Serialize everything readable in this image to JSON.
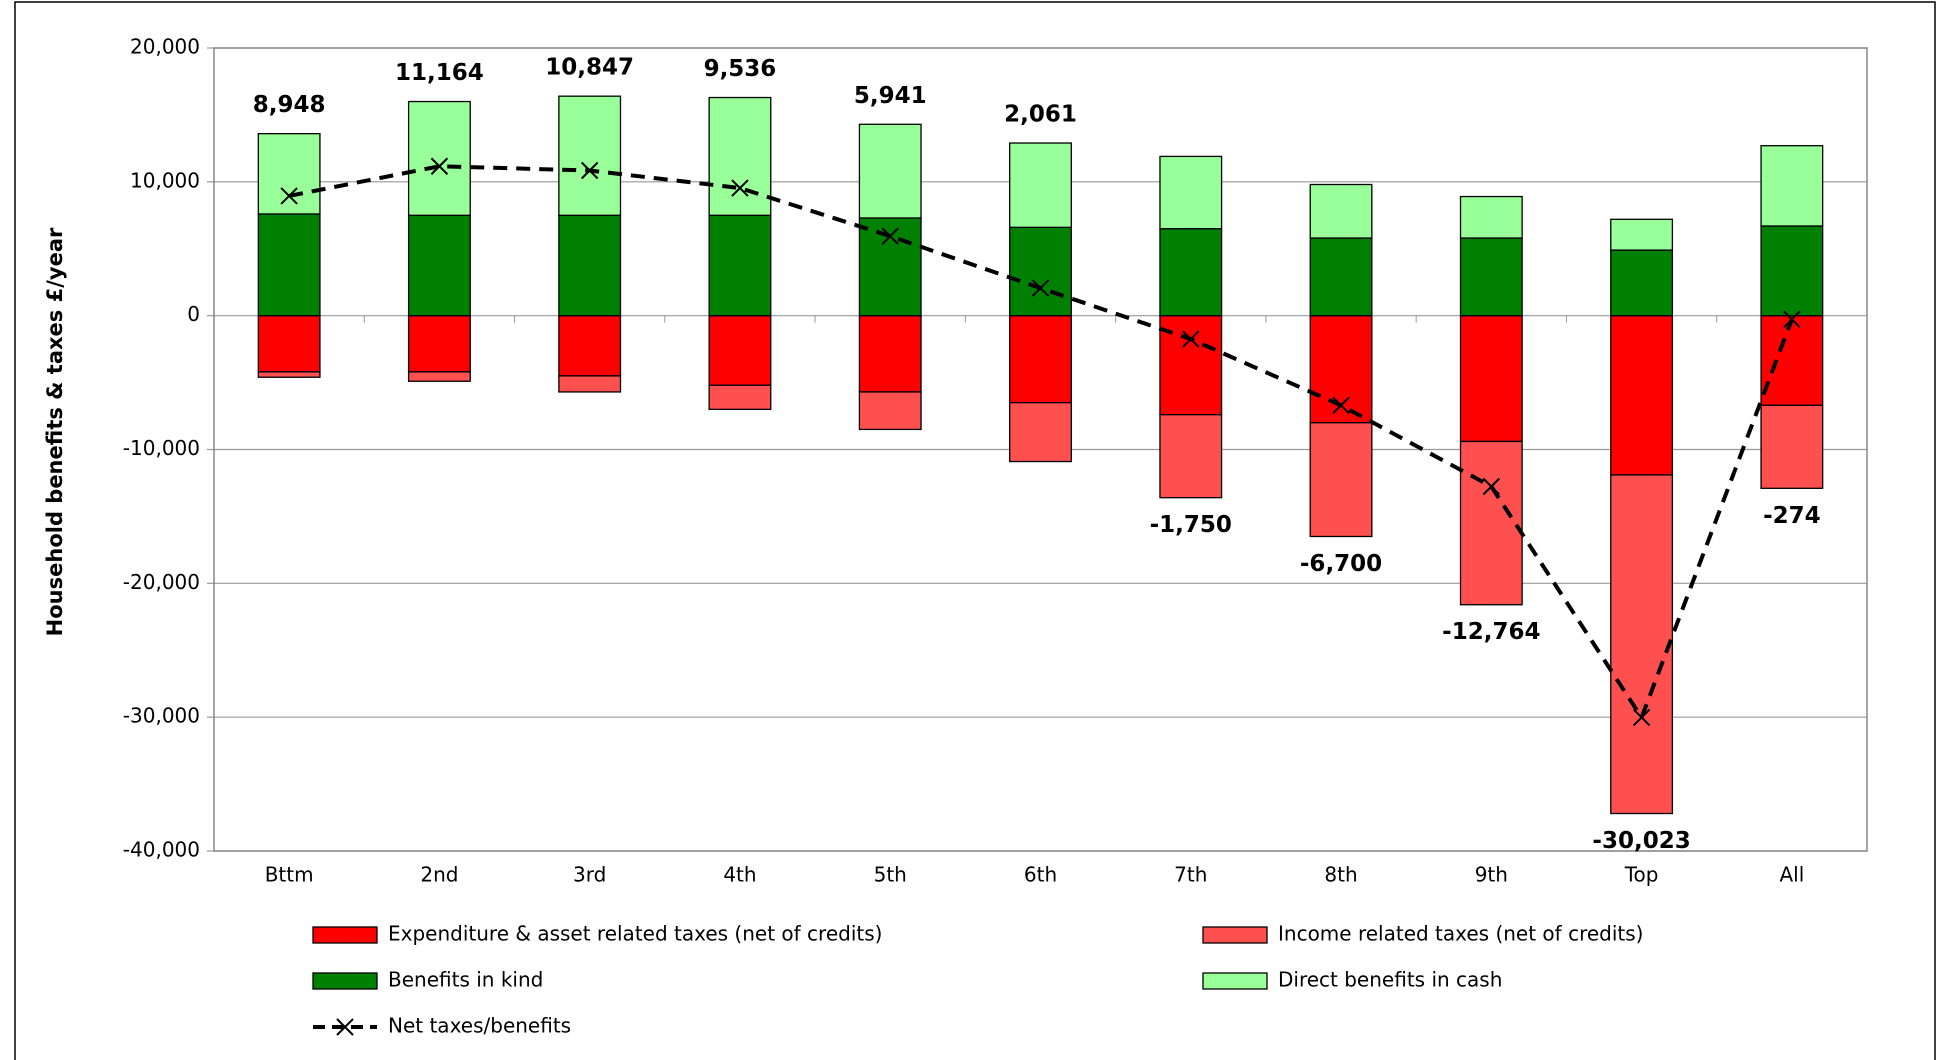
{
  "chart_data": {
    "type": "bar",
    "y_label": "Household benefits & taxes £/year",
    "categories": [
      "Bttm",
      "2nd",
      "3rd",
      "4th",
      "5th",
      "6th",
      "7th",
      "8th",
      "9th",
      "Top",
      "All"
    ],
    "series": [
      {
        "name": "Expenditure & asset related taxes (net of credits)",
        "color": "#ff0000",
        "values": [
          -4200,
          -4200,
          -4500,
          -5200,
          -5700,
          -6500,
          -7400,
          -8000,
          -9400,
          -11900,
          -6700
        ]
      },
      {
        "name": "Income related taxes (net of credits)",
        "color": "#ff5050",
        "values": [
          -400,
          -700,
          -1200,
          -1800,
          -2800,
          -4400,
          -6200,
          -8500,
          -12200,
          -25300,
          -6200
        ]
      },
      {
        "name": "Benefits in kind",
        "color": "#008000",
        "values": [
          7600,
          7500,
          7500,
          7500,
          7300,
          6600,
          6500,
          5800,
          5800,
          4900,
          6700
        ]
      },
      {
        "name": "Direct benefits in cash",
        "color": "#99ff99",
        "values": [
          6000,
          8500,
          8900,
          8800,
          7000,
          6300,
          5400,
          4000,
          3100,
          2300,
          6000
        ]
      },
      {
        "name": "Net taxes/benefits",
        "type": "line",
        "color": "#000000",
        "values": [
          8948,
          11164,
          10847,
          9536,
          5941,
          2061,
          -1750,
          -6700,
          -12764,
          -30023,
          -274
        ],
        "value_labels": [
          "8,948",
          "11,164",
          "10,847",
          "9,536",
          "5,941",
          "2,061",
          "-1,750",
          "-6,700",
          "-12,764",
          "-30,023",
          "-274"
        ]
      }
    ],
    "ylim": [
      -40000,
      20000
    ],
    "yticks": [
      {
        "value": -40000,
        "label": "-40,000"
      },
      {
        "value": -30000,
        "label": "-30,000"
      },
      {
        "value": -20000,
        "label": "-20,000"
      },
      {
        "value": -10000,
        "label": "-10,000"
      },
      0,
      {
        "value": 10000,
        "label": "10,000"
      },
      {
        "value": 20000,
        "label": "20,000"
      }
    ],
    "grid": true,
    "legend": "bottom"
  }
}
